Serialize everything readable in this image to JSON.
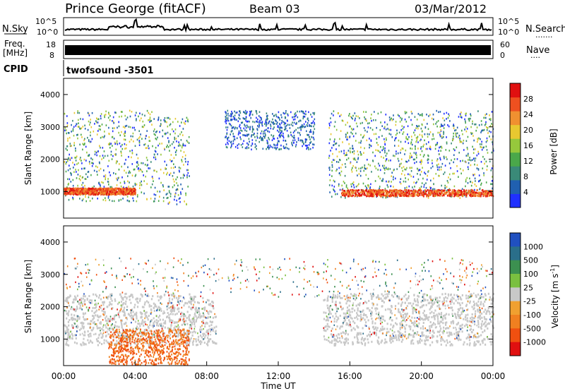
{
  "header": {
    "station": "Prince George (fitACF)",
    "beam": "Beam 03",
    "date": "03/Mar/2012"
  },
  "side_labels": {
    "nsky": "N.Sky",
    "nsearch": "N.Search",
    "freq_line1": "Freq.",
    "freq_line2": "[MHz]",
    "nave": "Nave",
    "cpid": "CPID",
    "cpid_value": "twofsound -3501"
  },
  "noise_panel": {
    "left_ticks": [
      "10^5",
      "10^0"
    ],
    "right_ticks": [
      "10^5",
      "10^0"
    ]
  },
  "freq_panel": {
    "left_ticks": [
      "18",
      "8"
    ],
    "right_ticks": [
      "60",
      "0"
    ]
  },
  "colors": {
    "nsearch_dots": "#000000",
    "nave_dots": "#000000"
  },
  "chart_data": [
    {
      "type": "heatmap",
      "name": "power",
      "xlabel": "",
      "ylabel": "Slant Range [km]",
      "xlim": [
        0,
        24
      ],
      "ylim": [
        180,
        4500
      ],
      "yticks": [
        1000,
        2000,
        3000,
        4000
      ],
      "colorbar": {
        "label": "Power [dB]",
        "ticks": [
          "4",
          "8",
          "12",
          "16",
          "20",
          "24",
          "28"
        ],
        "colors": [
          "#2030ff",
          "#2060b0",
          "#3a8a78",
          "#4aa84a",
          "#96c83c",
          "#e8c830",
          "#f09030",
          "#ee5020",
          "#e01010"
        ]
      },
      "scatter_regions": [
        {
          "t": [
            0.0,
            5.0
          ],
          "range": [
            700,
            3500
          ],
          "level": "mixed"
        },
        {
          "t": [
            5.0,
            7.0
          ],
          "range": [
            600,
            3300
          ],
          "level": "mixed"
        },
        {
          "t": [
            9.0,
            14.0
          ],
          "range": [
            2300,
            3500
          ],
          "level": "low"
        },
        {
          "t": [
            14.8,
            24.0
          ],
          "range": [
            800,
            3500
          ],
          "level": "mixed"
        }
      ],
      "strong_band": {
        "t": [
          0.0,
          4.0
        ],
        "range": [
          900,
          1100
        ],
        "power_db": 28
      },
      "strong_band_2": {
        "t": [
          15.5,
          24.0
        ],
        "range": [
          850,
          1050
        ],
        "power_db": 28
      }
    },
    {
      "type": "heatmap",
      "name": "velocity",
      "xlabel": "Time UT",
      "ylabel": "Slant Range [km]",
      "xlim": [
        0,
        24
      ],
      "ylim": [
        180,
        4500
      ],
      "yticks": [
        1000,
        2000,
        3000,
        4000
      ],
      "xticks": [
        "00:00",
        "04:00",
        "08:00",
        "12:00",
        "16:00",
        "20:00",
        "00:00"
      ],
      "colorbar": {
        "label": "Velocity [m s",
        "label_sup": "-1",
        "label_end": "]",
        "ticks": [
          "1000",
          "500",
          "100",
          "25",
          "-25",
          "-100",
          "-500",
          "-1000"
        ],
        "colors": [
          "#2050c0",
          "#2a6e8a",
          "#3c9050",
          "#7ac040",
          "#c8c8c8",
          "#f0a030",
          "#f08020",
          "#f05010",
          "#e01010"
        ]
      },
      "ground_scatter": {
        "t": [
          0.0,
          24.0
        ],
        "range": [
          800,
          2400
        ],
        "color_name": "gray"
      },
      "receding_feature": {
        "t": [
          2.5,
          7.0
        ],
        "range": [
          200,
          1300
        ],
        "velocity": -500
      }
    }
  ]
}
